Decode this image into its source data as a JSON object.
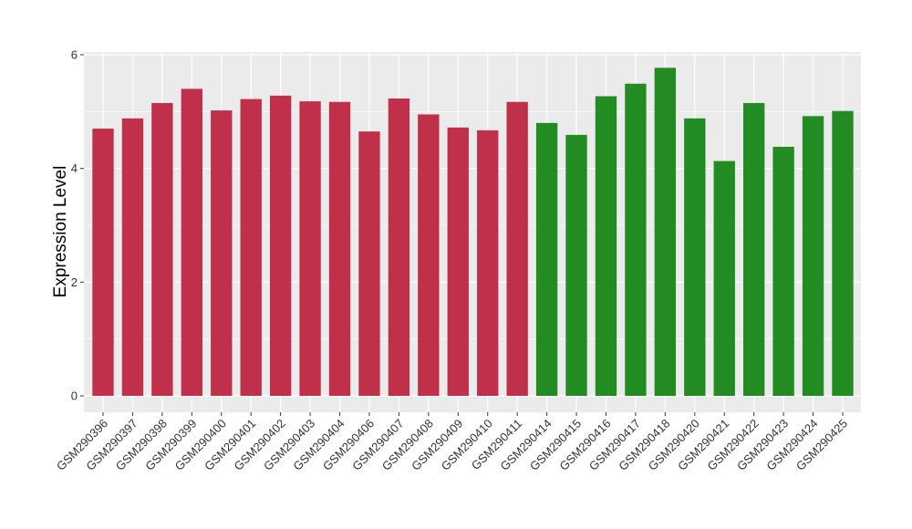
{
  "chart_data": {
    "type": "bar",
    "title": "",
    "xlabel": "",
    "ylabel": "Expression Level",
    "ylim": [
      0,
      6
    ],
    "y_ticks": [
      "0",
      "2",
      "4",
      "6"
    ],
    "grid": true,
    "legend": "none",
    "colors": {
      "group_1": "#c1304a",
      "group_2": "#228b22",
      "panel_bg": "#ebebeb",
      "grid": "#ffffff"
    },
    "categories": [
      "GSM290396",
      "GSM290397",
      "GSM290398",
      "GSM290399",
      "GSM290400",
      "GSM290401",
      "GSM290402",
      "GSM290403",
      "GSM290404",
      "GSM290406",
      "GSM290407",
      "GSM290408",
      "GSM290409",
      "GSM290410",
      "GSM290411",
      "GSM290414",
      "GSM290415",
      "GSM290416",
      "GSM290417",
      "GSM290418",
      "GSM290420",
      "GSM290421",
      "GSM290422",
      "GSM290423",
      "GSM290424",
      "GSM290425"
    ],
    "values": [
      4.7,
      4.88,
      5.15,
      5.4,
      5.02,
      5.22,
      5.28,
      5.18,
      5.17,
      4.65,
      5.23,
      4.95,
      4.72,
      4.67,
      5.17,
      4.8,
      4.59,
      5.27,
      5.49,
      5.77,
      4.88,
      4.13,
      5.15,
      4.38,
      4.92,
      5.01
    ],
    "groups": [
      "group_1",
      "group_1",
      "group_1",
      "group_1",
      "group_1",
      "group_1",
      "group_1",
      "group_1",
      "group_1",
      "group_1",
      "group_1",
      "group_1",
      "group_1",
      "group_1",
      "group_1",
      "group_2",
      "group_2",
      "group_2",
      "group_2",
      "group_2",
      "group_2",
      "group_2",
      "group_2",
      "group_2",
      "group_2",
      "group_2"
    ]
  }
}
